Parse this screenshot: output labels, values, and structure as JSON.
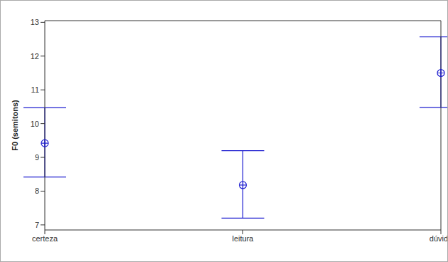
{
  "chart_data": {
    "type": "scatter",
    "ylabel": "F0 (semitons)",
    "categories": [
      "certeza",
      "leitura",
      "dúvida"
    ],
    "values": [
      9.42,
      8.18,
      11.5
    ],
    "lower": [
      8.42,
      7.2,
      10.48
    ],
    "upper": [
      10.47,
      9.2,
      12.57
    ],
    "color": "#1f1fd0",
    "marker": "circle",
    "ylim": [
      6.85,
      13.05
    ],
    "yticks": [
      7,
      8,
      9,
      10,
      11,
      12,
      13
    ]
  }
}
